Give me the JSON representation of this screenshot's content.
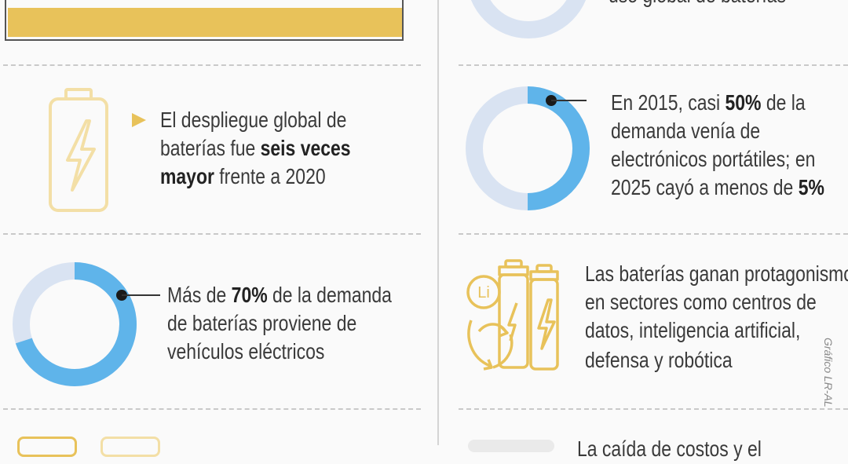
{
  "colors": {
    "gold": "#e8c25a",
    "blue": "#5fb4ea",
    "light_blue": "#d9e3f2",
    "text": "#3a3a3a"
  },
  "partial_top_right": "uso global de baterías",
  "item_deploy": {
    "icon": "battery-bolt-icon",
    "bullet": "triangle-bullet",
    "lines": [
      [
        "El despliegue global de",
        ""
      ],
      [
        "baterías fue ",
        "seis veces"
      ],
      [
        "mayor",
        " frente a 2020"
      ]
    ]
  },
  "item_portable": {
    "donut_value_pct": 50,
    "line1_pre": "En 2015, casi ",
    "line1_bold": "50%",
    "line1_post": " de la",
    "line2": "demanda venía de",
    "line3": "electrónicos portátiles; en",
    "line4_pre": "2025 cayó a menos de ",
    "line4_bold": "5%"
  },
  "item_ev": {
    "donut_value_pct": 70,
    "line1_pre": "Más de ",
    "line1_bold": "70%",
    "line1_post": " de la demanda",
    "line2": "de baterías proviene de",
    "line3": "vehículos eléctricos"
  },
  "item_sectors": {
    "icon": "lithium-batteries-icon",
    "icon_label": "Li",
    "line1": "Las baterías ganan protagonismo",
    "line2": "en sectores como centros de",
    "line3": "datos, inteligencia artificial,",
    "line4": "defensa y robótica"
  },
  "partial_bottom_right": "La caída de costos y el",
  "credit": "Gráfico LR-AL"
}
